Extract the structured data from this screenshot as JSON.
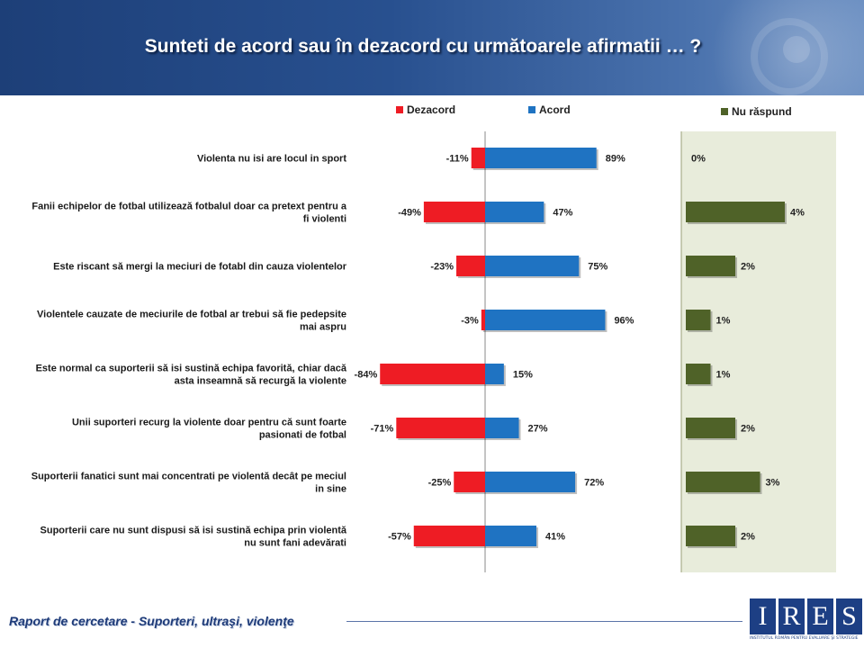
{
  "header": {
    "title": "Sunteti de acord sau în dezacord cu următoarele afirmatii … ?"
  },
  "chart_data": {
    "type": "bar",
    "legend": {
      "disagree": "Dezacord",
      "agree": "Acord",
      "no_answer": "Nu răspund"
    },
    "colors": {
      "disagree": "#ee1c24",
      "agree": "#1f73c2",
      "no_answer": "#4f6228",
      "panel": "#e8ecdb"
    },
    "categories": [
      "Violenta nu isi are locul in sport",
      "Fanii echipelor de fotbal utilizează fotbalul doar ca pretext pentru a fi violenti",
      "Este riscant să mergi la meciuri de fotabl din cauza violentelor",
      "Violentele cauzate de meciurile de fotbal ar trebui să fie pedepsite mai aspru",
      "Este normal ca suporterii să isi sustină echipa favorită, chiar dacă asta inseamnă să recurgă la violente",
      "Unii suporteri recurg la violente doar pentru că sunt foarte pasionati de fotbal",
      "Suporterii fanatici sunt mai concentrati pe violentă decât pe meciul in sine",
      "Suporterii care nu sunt dispusi să isi sustină echipa prin violentă nu sunt fani adevărati"
    ],
    "series": [
      {
        "name": "Dezacord",
        "values": [
          -11,
          -49,
          -23,
          -3,
          -84,
          -71,
          -25,
          -57
        ]
      },
      {
        "name": "Acord",
        "values": [
          89,
          47,
          75,
          96,
          15,
          27,
          72,
          41
        ]
      },
      {
        "name": "Nu răspund",
        "values": [
          0,
          4,
          2,
          1,
          1,
          2,
          3,
          2
        ]
      }
    ],
    "value_labels": {
      "disagree": [
        "-11%",
        "-49%",
        "-23%",
        "-3%",
        "-84%",
        "-71%",
        "-25%",
        "-57%"
      ],
      "agree": [
        "89%",
        "47%",
        "75%",
        "96%",
        "15%",
        "27%",
        "72%",
        "41%"
      ],
      "no_answer": [
        "0%",
        "4%",
        "2%",
        "1%",
        "1%",
        "2%",
        "3%",
        "2%"
      ]
    },
    "title": "",
    "xlabel": "",
    "ylabel": ""
  },
  "footer": {
    "report": "Raport de cercetare - Suporteri, ultraşi, violenţe"
  },
  "logo": {
    "letters": [
      "I",
      "R",
      "E",
      "S"
    ],
    "subtitle": "INSTITUTUL ROMÂN PENTRU EVALUARE ŞI STRATEGIE"
  }
}
